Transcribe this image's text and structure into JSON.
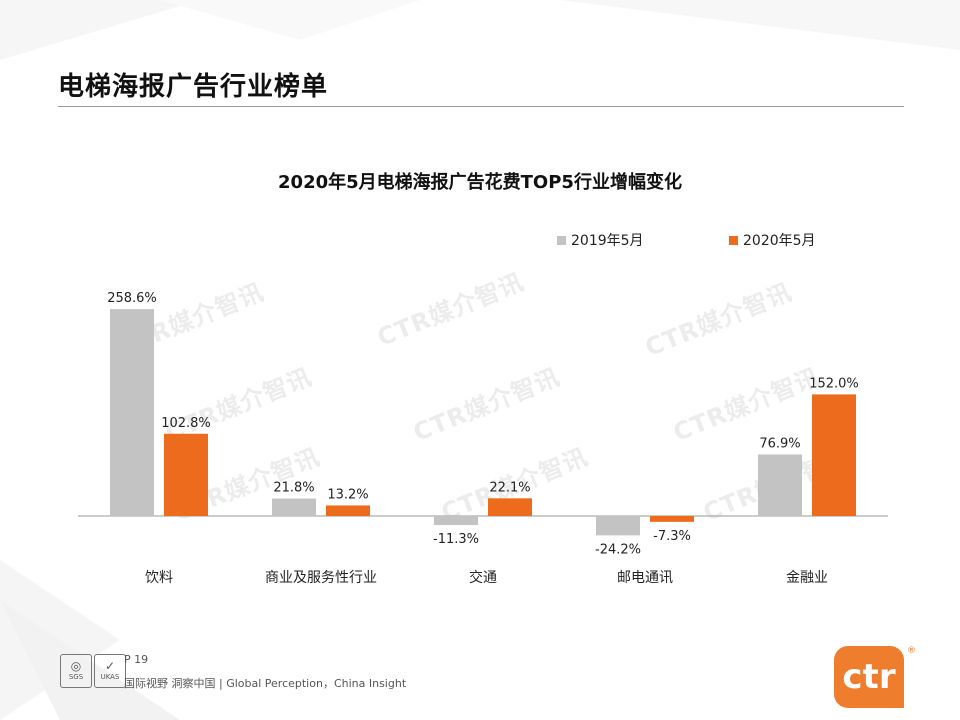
{
  "page": {
    "title": "电梯海报广告行业榜单",
    "page_number": "P 19",
    "tagline": "国际视野  洞察中国 |  Global Perception，China Insight",
    "watermark": "CTR媒介智讯",
    "logo_text": "ctr",
    "logo_mark": "®",
    "cert_left": "SGS",
    "cert_right": "UKAS"
  },
  "colors": {
    "series_2019": "#c3c3c3",
    "series_2020": "#ed6b1c",
    "brand": "#ef7d2e"
  },
  "chart_data": {
    "type": "bar",
    "title": "2020年5月电梯海报广告花费TOP5行业增幅变化",
    "categories": [
      "饮料",
      "商业及服务性行业",
      "交通",
      "邮电通讯",
      "金融业"
    ],
    "series": [
      {
        "name": "2019年5月",
        "values": [
          258.6,
          21.8,
          -11.3,
          -24.2,
          76.9
        ],
        "labels": [
          "258.6%",
          "21.8%",
          "-11.3%",
          "-24.2%",
          "76.9%"
        ]
      },
      {
        "name": "2020年5月",
        "values": [
          102.8,
          13.2,
          22.1,
          -7.3,
          152.0
        ],
        "labels": [
          "102.8%",
          "13.2%",
          "22.1%",
          "-7.3%",
          "152.0%"
        ]
      }
    ],
    "unit": "%",
    "ylim": [
      -40,
      260
    ],
    "grid": false,
    "legend": "top-right"
  }
}
